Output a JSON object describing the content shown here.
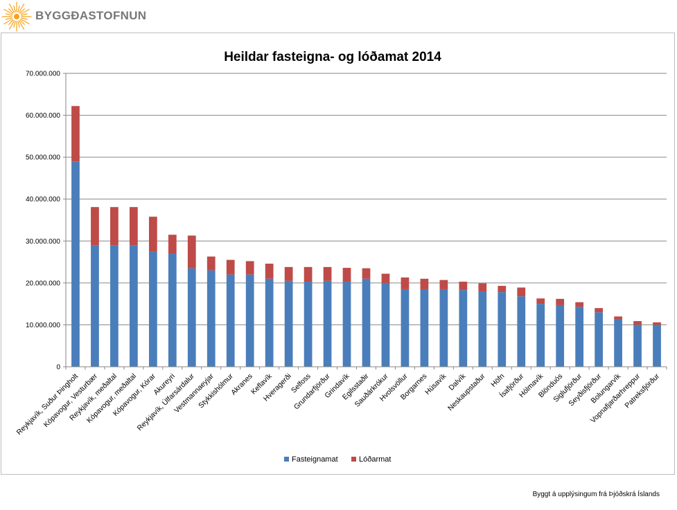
{
  "brand": {
    "name": "BYGGÐASTOFNUN",
    "logo_icon": "sun-burst-icon",
    "logo_color": "#f7a21b"
  },
  "footnote": "Byggt á upplýsingum frá Þjóðskrá Íslands",
  "chart_data": {
    "type": "bar",
    "stacked": true,
    "title": "Heildar fasteigna- og lóðamat 2014",
    "xlabel": "",
    "ylabel": "",
    "ylim": [
      0,
      70000000
    ],
    "yticks": [
      "0",
      "10.000.000",
      "20.000.000",
      "30.000.000",
      "40.000.000",
      "50.000.000",
      "60.000.000",
      "70.000.000"
    ],
    "grid": true,
    "legend_position": "bottom",
    "categories": [
      "Reykjavík, Suður Þingholt",
      "Kópavogur, Vesturbær",
      "Reykjavík, meðaltal",
      "Kópavogur, meðaltal",
      "Kópavogur, Kórar",
      "Akureyri",
      "Reykjavík, Úlfarsárdalur",
      "Vestmannaeyjar",
      "Stykkishólmur",
      "Akranes",
      "Keflavík",
      "Hveragerði",
      "Selfoss",
      "Grundarfjörður",
      "Grindavík",
      "Egilsstaðir",
      "Sauðárkrókur",
      "Hvolsvöllur",
      "Borgarnes",
      "Húsavík",
      "Dalvík",
      "Neskaupstaður",
      "Höfn",
      "Ísafjörður",
      "Hólmavík",
      "Blönduós",
      "Siglufjörður",
      "Seyðisfjörður",
      "Bolungarvík",
      "Vopnafjarðarhreppur",
      "Patreksfjörður"
    ],
    "series": [
      {
        "name": "Fasteignamat",
        "color": "#4a7ebb",
        "values": [
          49000000,
          29000000,
          29000000,
          29000000,
          27500000,
          27000000,
          23500000,
          23000000,
          22000000,
          22000000,
          21000000,
          20500000,
          20300000,
          20500000,
          20300000,
          21000000,
          20000000,
          18500000,
          18500000,
          18500000,
          18300000,
          18000000,
          17800000,
          16800000,
          15000000,
          14700000,
          14300000,
          13000000,
          11300000,
          10000000,
          10000000
        ]
      },
      {
        "name": "Lóðarmat",
        "color": "#be4b48",
        "values": [
          13200000,
          9100000,
          9100000,
          9100000,
          8300000,
          4500000,
          7800000,
          3300000,
          3500000,
          3200000,
          3600000,
          3300000,
          3500000,
          3300000,
          3300000,
          2500000,
          2200000,
          2800000,
          2500000,
          2200000,
          2000000,
          1900000,
          1500000,
          2100000,
          1300000,
          1500000,
          1100000,
          1000000,
          700000,
          900000,
          600000
        ]
      }
    ]
  }
}
